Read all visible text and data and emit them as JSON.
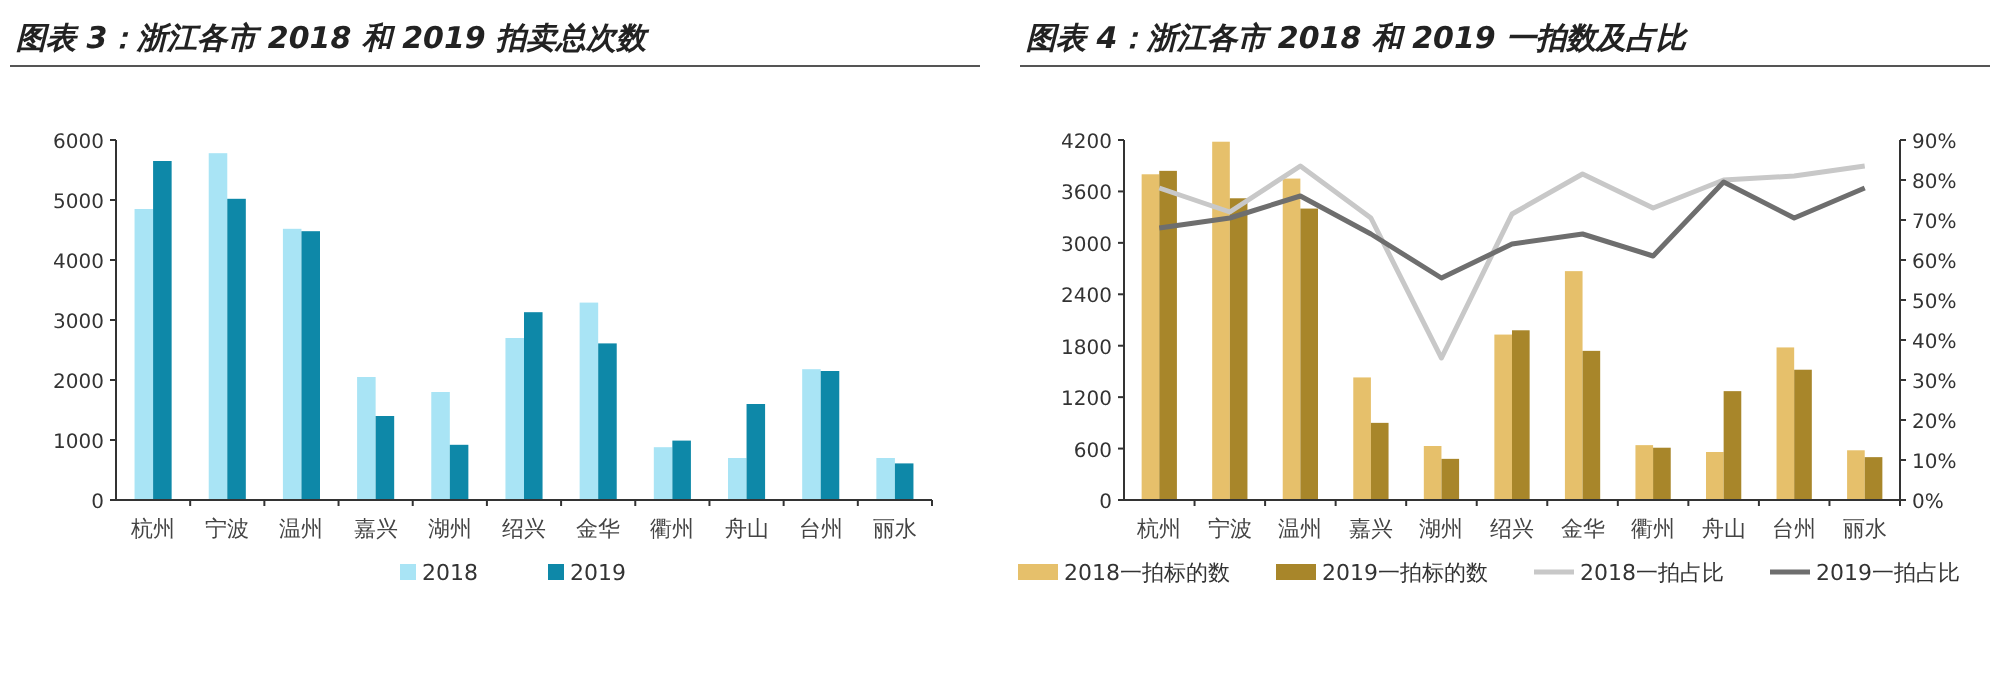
{
  "chart_data": [
    {
      "type": "bar",
      "title": "图表 3：浙江各市 2018 和 2019 拍卖总次数",
      "categories": [
        "杭州",
        "宁波",
        "温州",
        "嘉兴",
        "湖州",
        "绍兴",
        "金华",
        "衢州",
        "舟山",
        "台州",
        "丽水"
      ],
      "ylim": [
        0,
        6000
      ],
      "yticks": [
        0,
        1000,
        2000,
        3000,
        4000,
        5000,
        6000
      ],
      "legend": "bottom",
      "series": [
        {
          "name": "2018",
          "color": "#a9e4f5",
          "values": [
            4850,
            5780,
            4520,
            2050,
            1800,
            2700,
            3290,
            880,
            700,
            2180,
            700
          ]
        },
        {
          "name": "2019",
          "color": "#0e88a8",
          "values": [
            5650,
            5020,
            4480,
            1400,
            920,
            3130,
            2610,
            990,
            1600,
            2150,
            610
          ]
        }
      ]
    },
    {
      "type": "bar",
      "title": "图表 4：浙江各市 2018 和 2019 一拍数及占比",
      "categories": [
        "杭州",
        "宁波",
        "温州",
        "嘉兴",
        "湖州",
        "绍兴",
        "金华",
        "衢州",
        "舟山",
        "台州",
        "丽水"
      ],
      "ylim": [
        0,
        4200
      ],
      "yticks": [
        0,
        600,
        1200,
        1800,
        2400,
        3000,
        3600,
        4200
      ],
      "y2lim": [
        0,
        90
      ],
      "y2ticks": [
        {
          "value": 0,
          "label": "0%"
        },
        {
          "value": 10,
          "label": "10%"
        },
        {
          "value": 20,
          "label": "20%"
        },
        {
          "value": 30,
          "label": "30%"
        },
        {
          "value": 40,
          "label": "40%"
        },
        {
          "value": 50,
          "label": "50%"
        },
        {
          "value": 60,
          "label": "60%"
        },
        {
          "value": 70,
          "label": "70%"
        },
        {
          "value": 80,
          "label": "80%"
        },
        {
          "value": 90,
          "label": "90%"
        }
      ],
      "legend": "bottom",
      "series": [
        {
          "name": "2018一拍标的数",
          "color": "#e6c06b",
          "values": [
            3800,
            4180,
            3750,
            1430,
            630,
            1930,
            2670,
            640,
            560,
            1780,
            580
          ]
        },
        {
          "name": "2019一拍标的数",
          "color": "#a8862a",
          "values": [
            3840,
            3520,
            3400,
            900,
            480,
            1980,
            1740,
            610,
            1270,
            1520,
            500
          ]
        },
        {
          "name": "2018一拍占比",
          "type": "line",
          "axis": "y2",
          "color": "#c8c8c8",
          "values": [
            78,
            72,
            83.5,
            70.5,
            35.5,
            71.5,
            81.5,
            73,
            80,
            81,
            83.5
          ]
        },
        {
          "name": "2019一拍占比",
          "type": "line",
          "axis": "y2",
          "color": "#6e6e6e",
          "values": [
            68,
            70.5,
            76,
            66.5,
            55.5,
            64,
            66.5,
            61,
            79.5,
            70.5,
            78
          ]
        }
      ]
    }
  ]
}
